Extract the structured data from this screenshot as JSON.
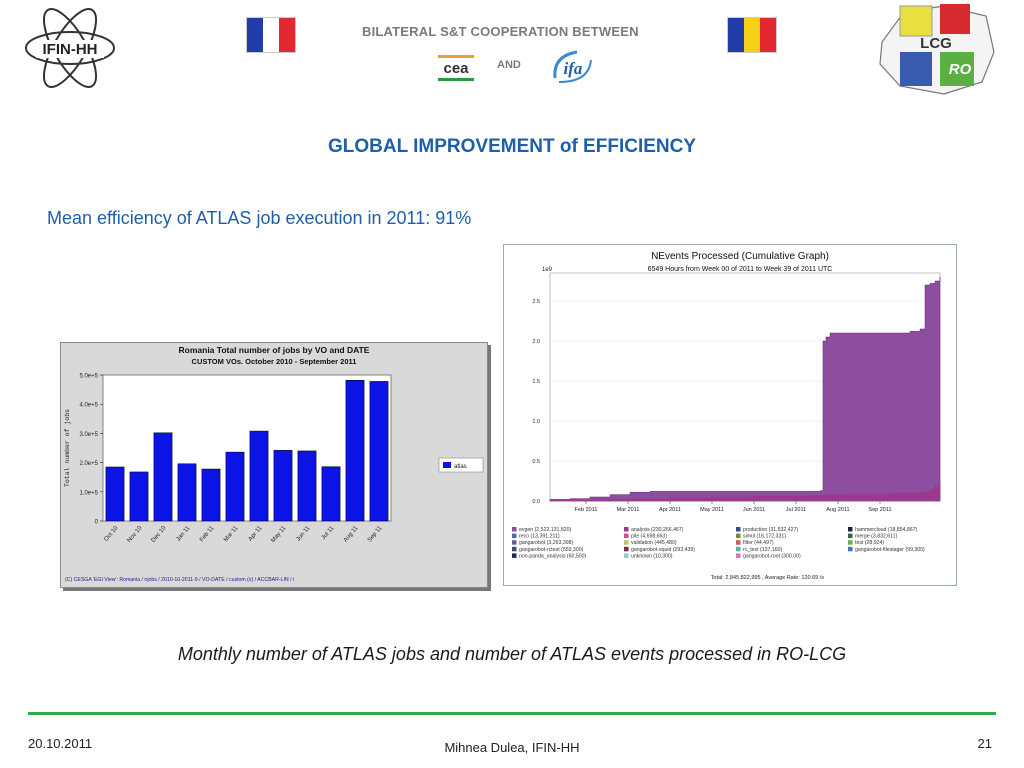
{
  "header": {
    "title": "BILATERAL S&T COOPERATION BETWEEN",
    "and_label": "AND",
    "logo_ifin": "IFIN-HH",
    "logo_cea": "cea",
    "logo_ifa": "ifa",
    "logo_lcg": "LCG",
    "logo_ro": "RO",
    "flag_france_colors": [
      "#1f3ea8",
      "#ffffff",
      "#e22730"
    ],
    "flag_romania_colors": [
      "#1f3ea8",
      "#f7d117",
      "#e22730"
    ]
  },
  "main_title": "GLOBAL IMPROVEMENT of EFFICIENCY",
  "subtitle": "Mean efficiency of ATLAS job execution in 2011: 91%",
  "caption": "Monthly number of ATLAS jobs and number of ATLAS events processed in RO-LCG",
  "footer": {
    "date": "20.10.2011",
    "author": "Mihnea Dulea, IFIN-HH",
    "page": "21"
  },
  "chart_data": [
    {
      "type": "bar",
      "title": "Romania Total number of jobs by VO and DATE",
      "subtitle": "CUSTOM VOs. October 2010 - September 2011",
      "ylabel": "Total number of jobs",
      "categories": [
        "Oct 10",
        "Nov 10",
        "Dec 10",
        "Jan 11",
        "Feb 11",
        "Mar 11",
        "Apr 11",
        "May 11",
        "Jun 11",
        "Jul 11",
        "Aug 11",
        "Sep 11"
      ],
      "series": [
        {
          "name": "atlas",
          "values": [
            185000,
            168000,
            302000,
            196000,
            178000,
            236000,
            308000,
            242000,
            240000,
            186000,
            482000,
            478000
          ]
        }
      ],
      "ylim": [
        0,
        500000
      ],
      "yticks": [
        "0",
        "1.0e+5",
        "2.0e+5",
        "3.0e+5",
        "4.0e+5",
        "5.0e+5"
      ],
      "footer": "(C) CESGA 'EGI View': Romania / njobs / 2010-10-2011-9 / VO-DATE / custom (x) / ACCBAR-LIN / i",
      "color": "#0a14e6"
    },
    {
      "type": "area",
      "title": "NEvents Processed (Cumulative Graph)",
      "subtitle": "6549 Hours from Week 00 of 2011 to Week 39 of 2011 UTC",
      "y_multiplier": "1e9",
      "xticks": [
        "Feb 2011",
        "Mar 2011",
        "Apr 2011",
        "May 2011",
        "Jun 2011",
        "Jul 2011",
        "Aug 2011",
        "Sep 2011"
      ],
      "yticks": [
        "0.0",
        "0.5",
        "1.0",
        "1.5",
        "2.0",
        "2.5"
      ],
      "ylim": [
        0,
        2.85
      ],
      "x": [
        0,
        2,
        4,
        6,
        8,
        10,
        12,
        14,
        16,
        18,
        20,
        22,
        24,
        26,
        27,
        27.3,
        27.6,
        28,
        30,
        32,
        34,
        36,
        37,
        37.5,
        38,
        38.5,
        39
      ],
      "series": [
        {
          "name": "evgen",
          "values": [
            0.02,
            0.03,
            0.05,
            0.08,
            0.11,
            0.12,
            0.12,
            0.12,
            0.12,
            0.12,
            0.12,
            0.12,
            0.12,
            0.12,
            0.13,
            2.0,
            2.05,
            2.1,
            2.1,
            2.1,
            2.1,
            2.12,
            2.15,
            2.7,
            2.72,
            2.75,
            2.8
          ]
        },
        {
          "name": "analysis",
          "values": [
            0.01,
            0.01,
            0.02,
            0.02,
            0.03,
            0.03,
            0.04,
            0.04,
            0.05,
            0.05,
            0.06,
            0.06,
            0.06,
            0.07,
            0.07,
            0.07,
            0.08,
            0.08,
            0.09,
            0.09,
            0.1,
            0.1,
            0.11,
            0.12,
            0.15,
            0.2,
            0.23
          ]
        }
      ],
      "legend": [
        {
          "label": "evgen (2,522,131,820)",
          "color": "#8e4ea0"
        },
        {
          "label": "analysis (230,266,467)",
          "color": "#9b3a8c"
        },
        {
          "label": "production (31,532,427)",
          "color": "#3a4a8c"
        },
        {
          "label": "hammercloud (18,854,867)",
          "color": "#222244"
        },
        {
          "label": "reco (13,391,211)",
          "color": "#4a6aa8"
        },
        {
          "label": "pile (4,698,663)",
          "color": "#d04a9a"
        },
        {
          "label": "simul (16,172,331)",
          "color": "#7a8a3a"
        },
        {
          "label": "merge (3,832,611)",
          "color": "#2a6a4a"
        },
        {
          "label": "gangarobot (3,263,398)",
          "color": "#6a5aa8"
        },
        {
          "label": "validation (445,480)",
          "color": "#a8d06a"
        },
        {
          "label": "filter (44,497)",
          "color": "#d0604a"
        },
        {
          "label": "test (28,924)",
          "color": "#6ab04a"
        },
        {
          "label": "gangarobot-rctest (559,300)",
          "color": "#4a4a6a"
        },
        {
          "label": "gangarobot-squid (293,439)",
          "color": "#7a2a5a"
        },
        {
          "label": "rc_test (137,160)",
          "color": "#5ab0a0"
        },
        {
          "label": "gangarobot-filestager (99,300)",
          "color": "#3a7ab0"
        },
        {
          "label": "non-panda_analysis (60,500)",
          "color": "#1a2a5a"
        },
        {
          "label": "unknown (10,300)",
          "color": "#8ad0c0"
        },
        {
          "label": "gangarobot-root (300.00)",
          "color": "#e070c0"
        }
      ],
      "total_label": "Total: 2,845,822,995 , Average Rate: 120.69 /s"
    }
  ]
}
